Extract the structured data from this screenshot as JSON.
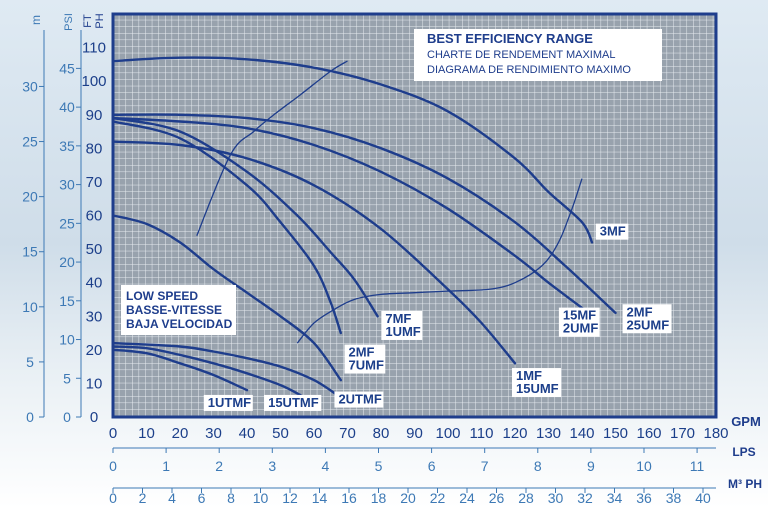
{
  "chart_data": {
    "type": "line",
    "title": "BEST EFFICIENCY RANGE",
    "subtitle_lines": [
      "CHARTE DE RENDEMENT MAXIMAL",
      "DIAGRAMA DE RENDIMIENTO MAXIMO"
    ],
    "low_speed_lines": [
      "LOW SPEED",
      "BASSE-VITESSE",
      "BAJA VELOCIDAD"
    ],
    "xlabel": "GPM",
    "ylabel": "FT PH",
    "xlim": [
      0,
      180
    ],
    "ylim": [
      0,
      120
    ],
    "x_ticks": [
      0,
      10,
      20,
      30,
      40,
      50,
      60,
      70,
      80,
      90,
      100,
      110,
      120,
      130,
      140,
      150,
      160,
      170,
      180
    ],
    "y_ticks": [
      0,
      10,
      20,
      30,
      40,
      50,
      60,
      70,
      80,
      90,
      100,
      110
    ],
    "grid": true,
    "secondary_axes": [
      {
        "unit": "m",
        "side": "left",
        "ticks": [
          "0",
          "5",
          "10",
          "15",
          "20",
          "25",
          "30"
        ],
        "values": [
          0,
          5,
          10,
          15,
          20,
          25,
          30
        ]
      },
      {
        "unit": "PSI",
        "side": "left",
        "ticks": [
          "0",
          "5",
          "10",
          "15",
          "20",
          "25",
          "30",
          "35",
          "40",
          "45"
        ],
        "values": [
          0,
          5,
          10,
          15,
          20,
          25,
          30,
          35,
          40,
          45
        ]
      },
      {
        "unit": "LPS",
        "side": "bottom",
        "ticks": [
          "0",
          "1",
          "2",
          "3",
          "4",
          "5",
          "6",
          "7",
          "8",
          "9",
          "10",
          "11"
        ],
        "values": [
          0,
          1,
          2,
          3,
          4,
          5,
          6,
          7,
          8,
          9,
          10,
          11
        ]
      },
      {
        "unit": "M³ PH",
        "side": "bottom",
        "ticks": [
          "0",
          "2",
          "4",
          "6",
          "8",
          "10",
          "12",
          "14",
          "16",
          "18",
          "20",
          "22",
          "24",
          "26",
          "28",
          "30",
          "32",
          "34",
          "36",
          "38",
          "40"
        ],
        "values": [
          0,
          2,
          4,
          6,
          8,
          10,
          12,
          14,
          16,
          18,
          20,
          22,
          24,
          26,
          28,
          30,
          32,
          34,
          36,
          38,
          40
        ]
      }
    ],
    "series": [
      {
        "name": "3MF",
        "x": [
          0,
          20,
          40,
          60,
          80,
          100,
          120,
          130,
          140,
          143
        ],
        "y": [
          106,
          107,
          106.5,
          104,
          99,
          91,
          77,
          67,
          58,
          52
        ]
      },
      {
        "name": "2MF 25UMF",
        "x": [
          0,
          20,
          40,
          60,
          80,
          100,
          120,
          135,
          150
        ],
        "y": [
          90,
          90,
          89,
          86,
          80,
          71,
          58,
          45,
          31
        ]
      },
      {
        "name": "15MF 2UMF",
        "x": [
          0,
          20,
          40,
          60,
          80,
          100,
          120,
          130,
          142
        ],
        "y": [
          89,
          88,
          86,
          81,
          73,
          62,
          48,
          40,
          31
        ]
      },
      {
        "name": "1MF 15UMF",
        "x": [
          0,
          20,
          40,
          60,
          80,
          100,
          110,
          120
        ],
        "y": [
          82,
          81,
          77,
          69,
          56,
          38,
          28,
          16
        ]
      },
      {
        "name": "7MF 1UMF",
        "x": [
          0,
          20,
          40,
          55,
          65,
          72,
          79
        ],
        "y": [
          89,
          85,
          73,
          60,
          49,
          41,
          30
        ]
      },
      {
        "name": "2MF 7UMF",
        "x": [
          0,
          20,
          40,
          50,
          60,
          65,
          68
        ],
        "y": [
          88,
          83,
          69,
          58,
          45,
          34,
          25
        ]
      },
      {
        "name": "LOW SPEED 1",
        "x": [
          0,
          10,
          20,
          30,
          40,
          50,
          60,
          68
        ],
        "y": [
          60,
          57.5,
          52,
          44,
          37,
          30,
          22,
          11
        ]
      },
      {
        "name": "2UTMF",
        "x": [
          0,
          20,
          30,
          40,
          50,
          60,
          67
        ],
        "y": [
          22,
          21,
          19.5,
          17.5,
          15,
          11,
          6.5
        ]
      },
      {
        "name": "15UTMF",
        "x": [
          0,
          10,
          20,
          30,
          40,
          50,
          56
        ],
        "y": [
          21,
          20.5,
          18.5,
          16,
          13,
          9.5,
          6.5
        ]
      },
      {
        "name": "1UTMF",
        "x": [
          0,
          10,
          20,
          30,
          40
        ],
        "y": [
          20,
          19,
          16,
          12.5,
          8
        ]
      }
    ],
    "efficiency_lines": [
      {
        "x": [
          25,
          35,
          42,
          48,
          56,
          65,
          70
        ],
        "y": [
          54,
          78,
          85,
          90,
          96,
          103,
          106
        ]
      },
      {
        "x": [
          55,
          60,
          66,
          72,
          80,
          90,
          100,
          112,
          120,
          128,
          133,
          137,
          140
        ],
        "y": [
          22,
          28,
          32,
          35,
          36.5,
          37,
          37.5,
          38,
          40,
          45,
          52,
          62,
          71
        ]
      }
    ],
    "curve_labels": [
      {
        "lines": [
          "3MF"
        ],
        "at": [
          145,
          54
        ]
      },
      {
        "lines": [
          "2MF",
          "25UMF"
        ],
        "at": [
          153,
          30
        ]
      },
      {
        "lines": [
          "15MF",
          "2UMF"
        ],
        "at": [
          134,
          29
        ]
      },
      {
        "lines": [
          "1MF",
          "15UMF"
        ],
        "at": [
          120,
          11
        ]
      },
      {
        "lines": [
          "7MF",
          "1UMF"
        ],
        "at": [
          81,
          28
        ]
      },
      {
        "lines": [
          "2MF",
          "7UMF"
        ],
        "at": [
          70,
          18
        ]
      },
      {
        "lines": [
          "2UTMF"
        ],
        "at": [
          67,
          4
        ]
      },
      {
        "lines": [
          "15UTMF"
        ],
        "at": [
          46,
          3
        ]
      },
      {
        "lines": [
          "1UTMF"
        ],
        "at": [
          28,
          3
        ]
      }
    ],
    "colors": {
      "curve": "#1e3d8c",
      "frame": "#1e3d8c",
      "grid": "#ffffff",
      "plot_bg": "#99a3ad",
      "secondary_axis": "#3d79b5"
    }
  }
}
